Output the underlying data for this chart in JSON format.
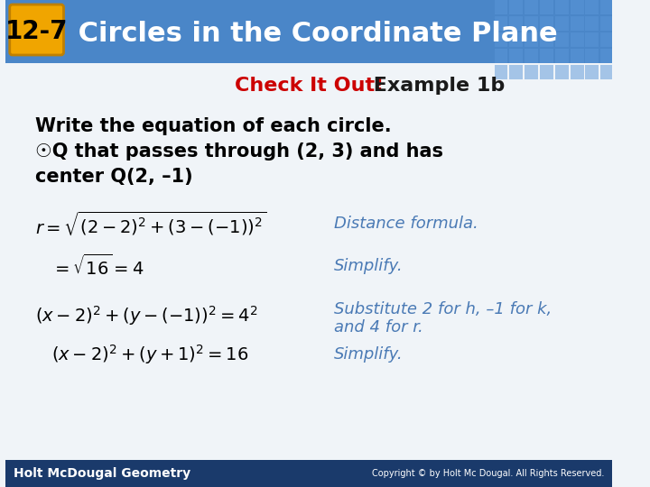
{
  "title_badge": "12-7",
  "title_text": " Circles in the Coordinate Plane",
  "header_bg": "#4a86c8",
  "header_tile_color": "#5a96d8",
  "badge_bg": "#f0a500",
  "badge_text_color": "#000000",
  "subtitle_red": "Check It Out!",
  "subtitle_black": " Example 1b",
  "body_bg": "#f0f4f8",
  "body_text_color": "#000000",
  "blue_annotation_color": "#4a7ab5",
  "footer_bg": "#1a3a6b",
  "footer_text": "Holt McDougal Geometry",
  "footer_copyright": "Copyright © by Holt Mc Dougal. All Rights Reserved.",
  "main_line1": "Write the equation of each circle.",
  "main_line2_prefix": "☉Q that passes through (2, 3) and has",
  "main_line3": "center Q(2, –1)",
  "eq1_left": "$r = \\sqrt{(2-2)^2 + (3-(-1))^2}$",
  "eq1_right": "Distance formula.",
  "eq2_left": "$= \\sqrt{16} = 4$",
  "eq2_right": "Simplify.",
  "eq3_left": "$(x - 2)^2 + (y - (-1))^2 = 4^2$",
  "eq3_right": "Substitute 2 for h, –1 for k,",
  "eq3_right2": "and 4 for r.",
  "eq4_left": "$(x - 2)^2 + (y + 1)^2 = 16$",
  "eq4_right": "Simplify."
}
